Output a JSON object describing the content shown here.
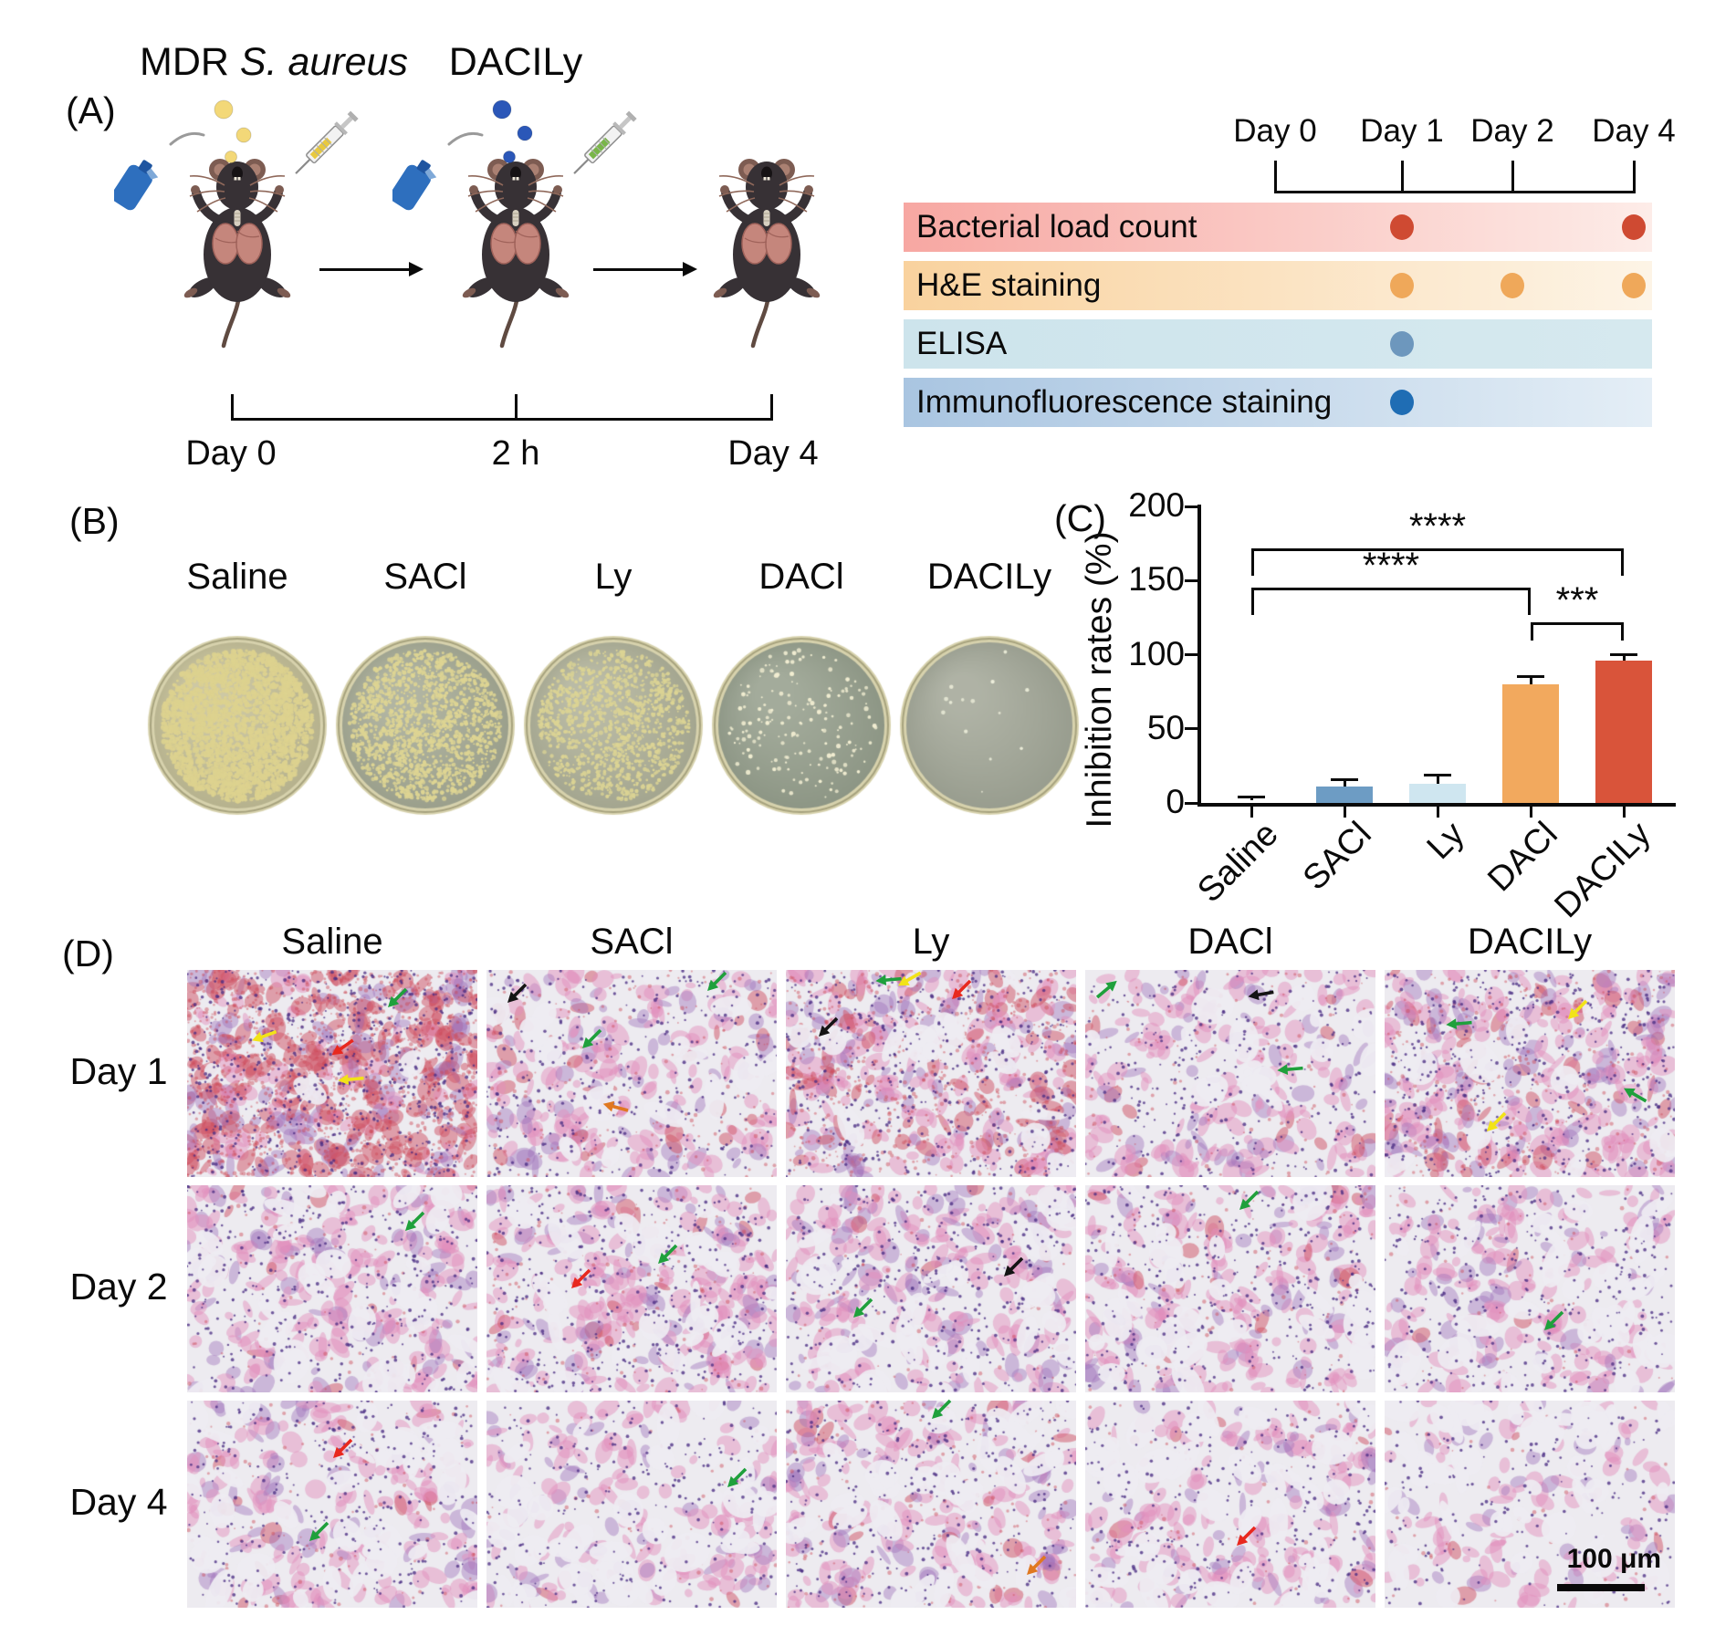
{
  "panelA": {
    "label": "(A)",
    "infection_label_prefix": "MDR ",
    "infection_label_italic": "S. aureus",
    "treatment_label": "DACILy",
    "bottom_timeline": [
      "Day 0",
      "2 h",
      "Day 4"
    ],
    "infection_droplet_color": "#f3d878",
    "treatment_droplet_color": "#2b57b8",
    "infection_syringe_fluid_color": "#e8c93e",
    "treatment_syringe_fluid_color": "#79b648",
    "schedule": {
      "day_headers": [
        "Day 0",
        "Day 1",
        "Day 2",
        "Day 4"
      ],
      "rows": [
        {
          "label": "Bacterial load count",
          "bar_from": "#f7a7a2",
          "bar_to": "#fdece8",
          "dot_color": "#cf4a32",
          "dot_days": [
            1,
            3
          ]
        },
        {
          "label": "H&E staining",
          "bar_from": "#f9d29e",
          "bar_to": "#fdf4e6",
          "dot_color": "#efa85a",
          "dot_days": [
            1,
            2,
            3
          ]
        },
        {
          "label": "ELISA",
          "bar_from": "#cde4ec",
          "bar_to": "#d6e9ef",
          "dot_color": "#6d97bd",
          "dot_days": [
            1
          ]
        },
        {
          "label": "Immunofluorescence staining",
          "bar_from": "#a9c5e1",
          "bar_to": "#e4eef6",
          "dot_color": "#1f6db4",
          "dot_days": [
            1
          ]
        }
      ]
    }
  },
  "panelB": {
    "label": "(B)",
    "dishes": [
      {
        "name": "Saline",
        "agar": "#c8c29a",
        "colony_color": "#ddd28f",
        "colonies": 2600
      },
      {
        "name": "SACl",
        "agar": "#a9ad98",
        "colony_color": "#ded593",
        "colonies": 1500
      },
      {
        "name": "Ly",
        "agar": "#b3b49c",
        "colony_color": "#dcd494",
        "colonies": 1100
      },
      {
        "name": "DACl",
        "agar": "#99a290",
        "colony_color": "#f2eed2",
        "colonies": 170
      },
      {
        "name": "DACILy",
        "agar": "#a6aa9b",
        "colony_color": "#eff0dc",
        "colonies": 14
      }
    ]
  },
  "panelC": {
    "label": "(C)"
  },
  "chart_data": {
    "type": "bar",
    "title": "",
    "ylabel": "Inhibition rates (%)",
    "xlabel": "",
    "categories": [
      "Saline",
      "SACl",
      "Ly",
      "DACl",
      "DACILy"
    ],
    "values": [
      2,
      11,
      13,
      80,
      96
    ],
    "errors": [
      2,
      5,
      6,
      5,
      4
    ],
    "bar_colors": [
      "#ffffff",
      "#6d9cc4",
      "#cfe6f0",
      "#f2a95e",
      "#d9543a"
    ],
    "ylim": [
      0,
      200
    ],
    "yticks": [
      0,
      50,
      100,
      150,
      200
    ],
    "grid": false,
    "legend": "none",
    "significance": [
      {
        "from": 0,
        "to": 4,
        "label": "****",
        "height": 172
      },
      {
        "from": 0,
        "to": 3,
        "label": "****",
        "height": 145
      },
      {
        "from": 3,
        "to": 4,
        "label": "***",
        "height": 122
      }
    ]
  },
  "panelD": {
    "label": "(D)",
    "columns": [
      "Saline",
      "SACl",
      "Ly",
      "DACl",
      "DACILy"
    ],
    "rows": [
      "Day 1",
      "Day 2",
      "Day 4"
    ],
    "scale_bar": "100 μm",
    "arrow_colors": {
      "green": "#1fa03c",
      "yellow": "#f2e318",
      "red": "#e8281e",
      "black": "#141414",
      "orange": "#e07820"
    },
    "tiles": [
      [
        {
          "d": 0.98,
          "r": 0.85,
          "o": 0.05,
          "arrows": [
            [
              "green",
              0.72,
              0.14,
              0
            ],
            [
              "yellow",
              0.26,
              0.32,
              25
            ],
            [
              "red",
              0.53,
              0.38,
              10
            ],
            [
              "yellow",
              0.56,
              0.53,
              40
            ]
          ]
        },
        {
          "d": 0.55,
          "r": 0.12,
          "o": 0.3,
          "arrows": [
            [
              "black",
              0.1,
              0.12,
              0
            ],
            [
              "green",
              0.79,
              0.06,
              0
            ],
            [
              "green",
              0.36,
              0.34,
              0
            ],
            [
              "orange",
              0.44,
              0.66,
              60
            ]
          ]
        },
        {
          "d": 0.72,
          "r": 0.4,
          "o": 0.33,
          "arrows": [
            [
              "green",
              0.35,
              0.05,
              40
            ],
            [
              "yellow",
              0.42,
              0.05,
              15
            ],
            [
              "red",
              0.6,
              0.1,
              0
            ],
            [
              "black",
              0.14,
              0.28,
              0
            ]
          ]
        },
        {
          "d": 0.5,
          "r": 0.08,
          "o": 0.3,
          "arrows": [
            [
              "green",
              0.08,
              0.09,
              185
            ],
            [
              "black",
              0.6,
              0.12,
              35
            ],
            [
              "green",
              0.7,
              0.48,
              40
            ]
          ]
        },
        {
          "d": 0.75,
          "r": 0.22,
          "o": 0.22,
          "arrows": [
            [
              "green",
              0.25,
              0.26,
              40
            ],
            [
              "yellow",
              0.66,
              0.2,
              0
            ],
            [
              "green",
              0.86,
              0.6,
              75
            ],
            [
              "yellow",
              0.38,
              0.74,
              0
            ]
          ]
        }
      ],
      [
        {
          "d": 0.62,
          "r": 0.06,
          "o": 0.55,
          "arrows": [
            [
              "green",
              0.78,
              0.18,
              0
            ]
          ]
        },
        {
          "d": 0.65,
          "r": 0.1,
          "o": 0.5,
          "arrows": [
            [
              "red",
              0.32,
              0.46,
              0
            ],
            [
              "green",
              0.62,
              0.34,
              0
            ]
          ]
        },
        {
          "d": 0.6,
          "r": 0.06,
          "o": 0.55,
          "arrows": [
            [
              "green",
              0.26,
              0.6,
              0
            ],
            [
              "black",
              0.78,
              0.4,
              0
            ]
          ]
        },
        {
          "d": 0.58,
          "r": 0.08,
          "o": 0.55,
          "arrows": [
            [
              "green",
              0.56,
              0.08,
              0
            ]
          ]
        },
        {
          "d": 0.5,
          "r": 0.05,
          "o": 0.6,
          "arrows": [
            [
              "green",
              0.58,
              0.66,
              0
            ]
          ]
        }
      ],
      [
        {
          "d": 0.5,
          "r": 0.08,
          "o": 0.65,
          "arrows": [
            [
              "red",
              0.53,
              0.24,
              0
            ],
            [
              "green",
              0.45,
              0.64,
              0
            ]
          ]
        },
        {
          "d": 0.42,
          "r": 0.04,
          "o": 0.72,
          "arrows": [
            [
              "green",
              0.86,
              0.38,
              0
            ]
          ]
        },
        {
          "d": 0.52,
          "r": 0.1,
          "o": 0.65,
          "arrows": [
            [
              "green",
              0.53,
              0.05,
              0
            ],
            [
              "orange",
              0.86,
              0.8,
              0
            ]
          ]
        },
        {
          "d": 0.46,
          "r": 0.06,
          "o": 0.68,
          "arrows": [
            [
              "red",
              0.55,
              0.66,
              0
            ]
          ]
        },
        {
          "d": 0.3,
          "r": 0.03,
          "o": 0.85,
          "arrows": []
        }
      ]
    ]
  }
}
